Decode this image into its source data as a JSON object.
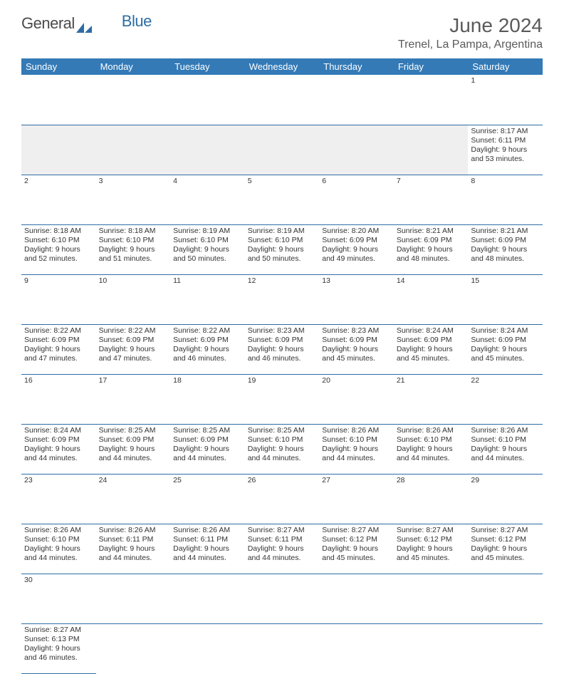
{
  "logo": {
    "text1": "General",
    "text2": "Blue"
  },
  "title": "June 2024",
  "location": "Trenel, La Pampa, Argentina",
  "colors": {
    "header_bg": "#337ab7",
    "header_fg": "#ffffff",
    "rule": "#2e6da4",
    "daynum_bg": "#efefef",
    "text": "#333333"
  },
  "dayHeaders": [
    "Sunday",
    "Monday",
    "Tuesday",
    "Wednesday",
    "Thursday",
    "Friday",
    "Saturday"
  ],
  "weeks": [
    [
      null,
      null,
      null,
      null,
      null,
      null,
      {
        "n": "1",
        "sr": "8:17 AM",
        "ss": "6:11 PM",
        "dl": "9 hours and 53 minutes."
      }
    ],
    [
      {
        "n": "2",
        "sr": "8:18 AM",
        "ss": "6:10 PM",
        "dl": "9 hours and 52 minutes."
      },
      {
        "n": "3",
        "sr": "8:18 AM",
        "ss": "6:10 PM",
        "dl": "9 hours and 51 minutes."
      },
      {
        "n": "4",
        "sr": "8:19 AM",
        "ss": "6:10 PM",
        "dl": "9 hours and 50 minutes."
      },
      {
        "n": "5",
        "sr": "8:19 AM",
        "ss": "6:10 PM",
        "dl": "9 hours and 50 minutes."
      },
      {
        "n": "6",
        "sr": "8:20 AM",
        "ss": "6:09 PM",
        "dl": "9 hours and 49 minutes."
      },
      {
        "n": "7",
        "sr": "8:21 AM",
        "ss": "6:09 PM",
        "dl": "9 hours and 48 minutes."
      },
      {
        "n": "8",
        "sr": "8:21 AM",
        "ss": "6:09 PM",
        "dl": "9 hours and 48 minutes."
      }
    ],
    [
      {
        "n": "9",
        "sr": "8:22 AM",
        "ss": "6:09 PM",
        "dl": "9 hours and 47 minutes."
      },
      {
        "n": "10",
        "sr": "8:22 AM",
        "ss": "6:09 PM",
        "dl": "9 hours and 47 minutes."
      },
      {
        "n": "11",
        "sr": "8:22 AM",
        "ss": "6:09 PM",
        "dl": "9 hours and 46 minutes."
      },
      {
        "n": "12",
        "sr": "8:23 AM",
        "ss": "6:09 PM",
        "dl": "9 hours and 46 minutes."
      },
      {
        "n": "13",
        "sr": "8:23 AM",
        "ss": "6:09 PM",
        "dl": "9 hours and 45 minutes."
      },
      {
        "n": "14",
        "sr": "8:24 AM",
        "ss": "6:09 PM",
        "dl": "9 hours and 45 minutes."
      },
      {
        "n": "15",
        "sr": "8:24 AM",
        "ss": "6:09 PM",
        "dl": "9 hours and 45 minutes."
      }
    ],
    [
      {
        "n": "16",
        "sr": "8:24 AM",
        "ss": "6:09 PM",
        "dl": "9 hours and 44 minutes."
      },
      {
        "n": "17",
        "sr": "8:25 AM",
        "ss": "6:09 PM",
        "dl": "9 hours and 44 minutes."
      },
      {
        "n": "18",
        "sr": "8:25 AM",
        "ss": "6:09 PM",
        "dl": "9 hours and 44 minutes."
      },
      {
        "n": "19",
        "sr": "8:25 AM",
        "ss": "6:10 PM",
        "dl": "9 hours and 44 minutes."
      },
      {
        "n": "20",
        "sr": "8:26 AM",
        "ss": "6:10 PM",
        "dl": "9 hours and 44 minutes."
      },
      {
        "n": "21",
        "sr": "8:26 AM",
        "ss": "6:10 PM",
        "dl": "9 hours and 44 minutes."
      },
      {
        "n": "22",
        "sr": "8:26 AM",
        "ss": "6:10 PM",
        "dl": "9 hours and 44 minutes."
      }
    ],
    [
      {
        "n": "23",
        "sr": "8:26 AM",
        "ss": "6:10 PM",
        "dl": "9 hours and 44 minutes."
      },
      {
        "n": "24",
        "sr": "8:26 AM",
        "ss": "6:11 PM",
        "dl": "9 hours and 44 minutes."
      },
      {
        "n": "25",
        "sr": "8:26 AM",
        "ss": "6:11 PM",
        "dl": "9 hours and 44 minutes."
      },
      {
        "n": "26",
        "sr": "8:27 AM",
        "ss": "6:11 PM",
        "dl": "9 hours and 44 minutes."
      },
      {
        "n": "27",
        "sr": "8:27 AM",
        "ss": "6:12 PM",
        "dl": "9 hours and 45 minutes."
      },
      {
        "n": "28",
        "sr": "8:27 AM",
        "ss": "6:12 PM",
        "dl": "9 hours and 45 minutes."
      },
      {
        "n": "29",
        "sr": "8:27 AM",
        "ss": "6:12 PM",
        "dl": "9 hours and 45 minutes."
      }
    ],
    [
      {
        "n": "30",
        "sr": "8:27 AM",
        "ss": "6:13 PM",
        "dl": "9 hours and 46 minutes."
      },
      null,
      null,
      null,
      null,
      null,
      null
    ]
  ],
  "labels": {
    "sunrise": "Sunrise:",
    "sunset": "Sunset:",
    "daylight": "Daylight:"
  }
}
